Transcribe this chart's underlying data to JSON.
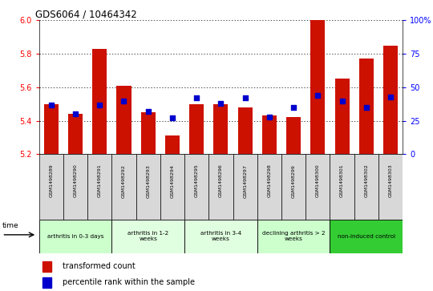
{
  "title": "GDS6064 / 10464342",
  "samples": [
    "GSM1498289",
    "GSM1498290",
    "GSM1498291",
    "GSM1498292",
    "GSM1498293",
    "GSM1498294",
    "GSM1498295",
    "GSM1498296",
    "GSM1498297",
    "GSM1498298",
    "GSM1498299",
    "GSM1498300",
    "GSM1498301",
    "GSM1498302",
    "GSM1498303"
  ],
  "transformed_count": [
    5.5,
    5.44,
    5.83,
    5.61,
    5.45,
    5.31,
    5.5,
    5.5,
    5.48,
    5.43,
    5.42,
    6.0,
    5.65,
    5.77,
    5.85
  ],
  "percentile_rank": [
    37,
    30,
    37,
    40,
    32,
    27,
    42,
    38,
    42,
    28,
    35,
    44,
    40,
    35,
    43
  ],
  "ymin": 5.2,
  "ymax": 6.0,
  "yticks": [
    5.2,
    5.4,
    5.6,
    5.8,
    6.0
  ],
  "bar_color": "#cc1100",
  "percentile_color": "#0000cc",
  "groups": [
    {
      "label": "arthritis in 0-3 days",
      "start": 0,
      "end": 3,
      "color": "#ccffcc"
    },
    {
      "label": "arthritis in 1-2\nweeks",
      "start": 3,
      "end": 6,
      "color": "#e0ffe0"
    },
    {
      "label": "arthritis in 3-4\nweeks",
      "start": 6,
      "end": 9,
      "color": "#e0ffe0"
    },
    {
      "label": "declining arthritis > 2\nweeks",
      "start": 9,
      "end": 12,
      "color": "#ccffcc"
    },
    {
      "label": "non-induced control",
      "start": 12,
      "end": 15,
      "color": "#33cc33"
    }
  ],
  "right_yticks": [
    0,
    25,
    50,
    75,
    100
  ],
  "right_yticklabels": [
    "0",
    "25",
    "50",
    "75",
    "100%"
  ]
}
